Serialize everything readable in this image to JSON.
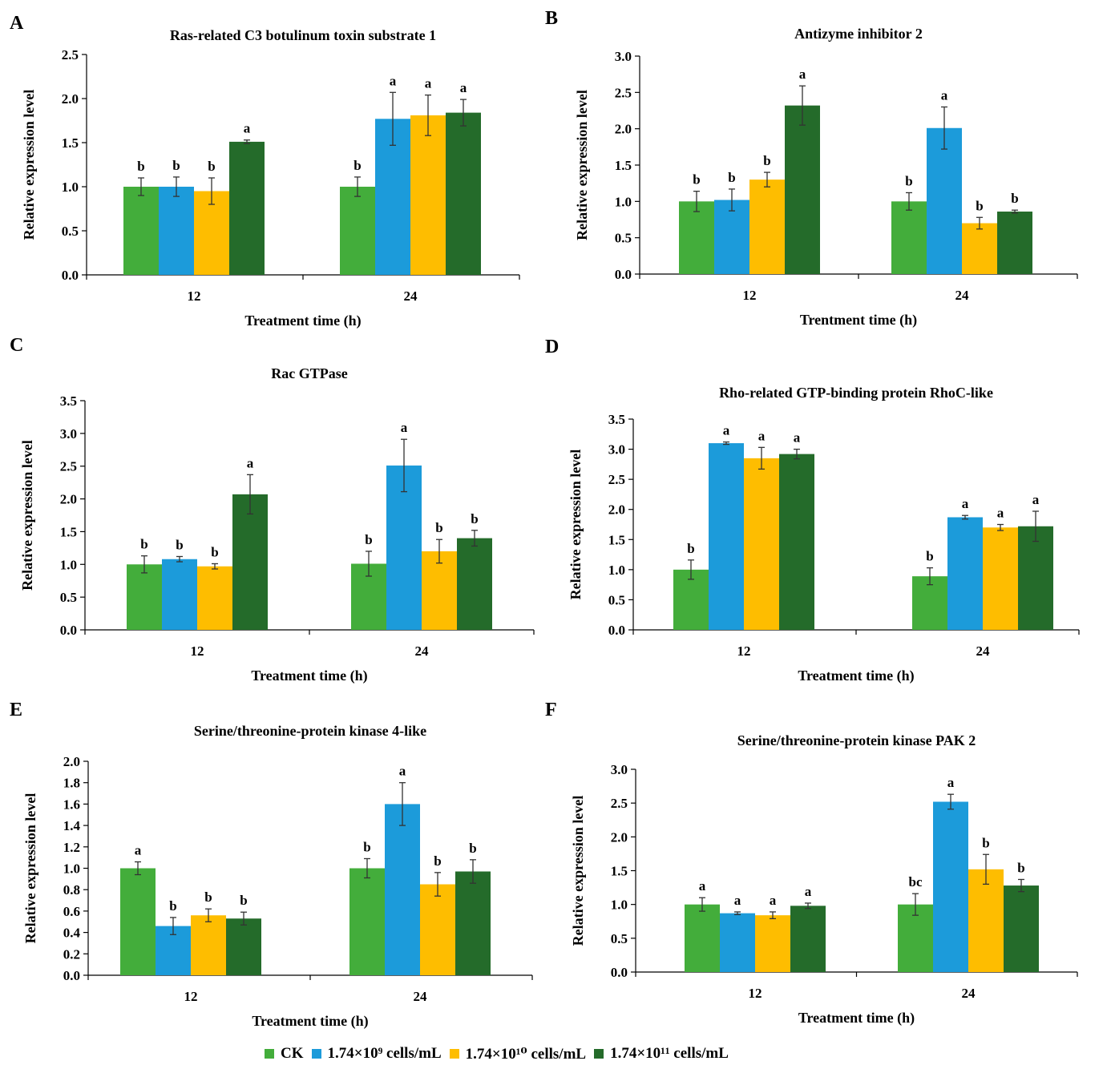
{
  "legend": [
    {
      "label": "CK",
      "color": "#43AD3B"
    },
    {
      "label": "1.74×10⁹ cells/mL",
      "color": "#1C9BDA"
    },
    {
      "label": "1.74×10¹⁰ cells/mL",
      "color": "#FEBD00"
    },
    {
      "label": "1.74×10¹¹ cells/mL",
      "color": "#246B2A"
    }
  ],
  "chart_data": [
    {
      "panel": "A",
      "type": "bar",
      "title": "Ras-related C3 botulinum toxin substrate 1",
      "xlabel": "Treatment time (h)",
      "ylabel": "Relative expression level",
      "categories": [
        "12",
        "24"
      ],
      "ylim": [
        0,
        2.5
      ],
      "ytick_step": 0.5,
      "ytick_decimals": 1,
      "series": [
        {
          "name": "CK",
          "values": [
            1.0,
            1.0
          ],
          "errors": [
            0.1,
            0.11
          ],
          "labels": [
            "b",
            "b"
          ]
        },
        {
          "name": "1.74×10⁹ cells/mL",
          "values": [
            1.0,
            1.77
          ],
          "errors": [
            0.11,
            0.3
          ],
          "labels": [
            "b",
            "a"
          ]
        },
        {
          "name": "1.74×10¹⁰ cells/mL",
          "values": [
            0.95,
            1.81
          ],
          "errors": [
            0.15,
            0.23
          ],
          "labels": [
            "b",
            "a"
          ]
        },
        {
          "name": "1.74×10¹¹ cells/mL",
          "values": [
            1.51,
            1.84
          ],
          "errors": [
            0.02,
            0.15
          ],
          "labels": [
            "a",
            "a"
          ]
        }
      ]
    },
    {
      "panel": "B",
      "type": "bar",
      "title": "Antizyme inhibitor 2",
      "xlabel": "Trentment time (h)",
      "ylabel": "Relative expression level",
      "categories": [
        "12",
        "24"
      ],
      "ylim": [
        0,
        3.0
      ],
      "ytick_step": 0.5,
      "ytick_decimals": 1,
      "series": [
        {
          "name": "CK",
          "values": [
            1.0,
            1.0
          ],
          "errors": [
            0.14,
            0.12
          ],
          "labels": [
            "b",
            "b"
          ]
        },
        {
          "name": "1.74×10⁹ cells/mL",
          "values": [
            1.02,
            2.01
          ],
          "errors": [
            0.15,
            0.29
          ],
          "labels": [
            "b",
            "a"
          ]
        },
        {
          "name": "1.74×10¹⁰ cells/mL",
          "values": [
            1.3,
            0.7
          ],
          "errors": [
            0.1,
            0.08
          ],
          "labels": [
            "b",
            "b"
          ]
        },
        {
          "name": "1.74×10¹¹ cells/mL",
          "values": [
            2.32,
            0.86
          ],
          "errors": [
            0.27,
            0.02
          ],
          "labels": [
            "a",
            "b"
          ]
        }
      ]
    },
    {
      "panel": "C",
      "type": "bar",
      "title": "Rac GTPase",
      "xlabel": "Treatment time (h)",
      "ylabel": "Relative expression level",
      "categories": [
        "12",
        "24"
      ],
      "ylim": [
        0,
        3.5
      ],
      "ytick_step": 0.5,
      "ytick_decimals": 1,
      "series": [
        {
          "name": "CK",
          "values": [
            1.0,
            1.01
          ],
          "errors": [
            0.13,
            0.19
          ],
          "labels": [
            "b",
            "b"
          ]
        },
        {
          "name": "1.74×10⁹ cells/mL",
          "values": [
            1.08,
            2.51
          ],
          "errors": [
            0.04,
            0.4
          ],
          "labels": [
            "b",
            "a"
          ]
        },
        {
          "name": "1.74×10¹⁰ cells/mL",
          "values": [
            0.97,
            1.2
          ],
          "errors": [
            0.04,
            0.18
          ],
          "labels": [
            "b",
            "b"
          ]
        },
        {
          "name": "1.74×10¹¹ cells/mL",
          "values": [
            2.07,
            1.4
          ],
          "errors": [
            0.3,
            0.12
          ],
          "labels": [
            "a",
            "b"
          ]
        }
      ]
    },
    {
      "panel": "D",
      "type": "bar",
      "title": "Rho-related GTP-binding protein RhoC-like",
      "xlabel": "Treatment time (h)",
      "ylabel": "Relative expression level",
      "categories": [
        "12",
        "24"
      ],
      "ylim": [
        0,
        3.5
      ],
      "ytick_step": 0.5,
      "ytick_decimals": 1,
      "series": [
        {
          "name": "CK",
          "values": [
            1.0,
            0.89
          ],
          "errors": [
            0.16,
            0.14
          ],
          "labels": [
            "b",
            "b"
          ]
        },
        {
          "name": "1.74×10⁹ cells/mL",
          "values": [
            3.1,
            1.87
          ],
          "errors": [
            0.02,
            0.03
          ],
          "labels": [
            "a",
            "a"
          ]
        },
        {
          "name": "1.74×10¹⁰ cells/mL",
          "values": [
            2.85,
            1.7
          ],
          "errors": [
            0.18,
            0.05
          ],
          "labels": [
            "a",
            "a"
          ]
        },
        {
          "name": "1.74×10¹¹ cells/mL",
          "values": [
            2.92,
            1.72
          ],
          "errors": [
            0.08,
            0.25
          ],
          "labels": [
            "a",
            "a"
          ]
        }
      ]
    },
    {
      "panel": "E",
      "type": "bar",
      "title": "Serine/threonine-protein kinase 4-like",
      "xlabel": "Treatment time (h)",
      "ylabel": "Relative expression level",
      "categories": [
        "12",
        "24"
      ],
      "ylim": [
        0,
        2.0
      ],
      "ytick_step": 0.2,
      "ytick_decimals": 1,
      "series": [
        {
          "name": "CK",
          "values": [
            1.0,
            1.0
          ],
          "errors": [
            0.06,
            0.09
          ],
          "labels": [
            "a",
            "b"
          ]
        },
        {
          "name": "1.74×10⁹ cells/mL",
          "values": [
            0.46,
            1.6
          ],
          "errors": [
            0.08,
            0.2
          ],
          "labels": [
            "b",
            "a"
          ]
        },
        {
          "name": "1.74×10¹⁰ cells/mL",
          "values": [
            0.56,
            0.85
          ],
          "errors": [
            0.06,
            0.11
          ],
          "labels": [
            "b",
            "b"
          ]
        },
        {
          "name": "1.74×10¹¹ cells/mL",
          "values": [
            0.53,
            0.97
          ],
          "errors": [
            0.06,
            0.11
          ],
          "labels": [
            "b",
            "b"
          ]
        }
      ]
    },
    {
      "panel": "F",
      "type": "bar",
      "title": "Serine/threonine-protein kinase PAK 2",
      "xlabel": "Treatment time (h)",
      "ylabel": "Relative expression level",
      "categories": [
        "12",
        "24"
      ],
      "ylim": [
        0,
        3.0
      ],
      "ytick_step": 0.5,
      "ytick_decimals": 1,
      "series": [
        {
          "name": "CK",
          "values": [
            1.0,
            1.0
          ],
          "errors": [
            0.1,
            0.16
          ],
          "labels": [
            "a",
            "bc"
          ]
        },
        {
          "name": "1.74×10⁹ cells/mL",
          "values": [
            0.87,
            2.52
          ],
          "errors": [
            0.02,
            0.11
          ],
          "labels": [
            "a",
            "a"
          ]
        },
        {
          "name": "1.74×10¹⁰ cells/mL",
          "values": [
            0.84,
            1.52
          ],
          "errors": [
            0.05,
            0.22
          ],
          "labels": [
            "a",
            "b"
          ]
        },
        {
          "name": "1.74×10¹¹ cells/mL",
          "values": [
            0.98,
            1.28
          ],
          "errors": [
            0.04,
            0.09
          ],
          "labels": [
            "a",
            "b"
          ]
        }
      ]
    }
  ]
}
